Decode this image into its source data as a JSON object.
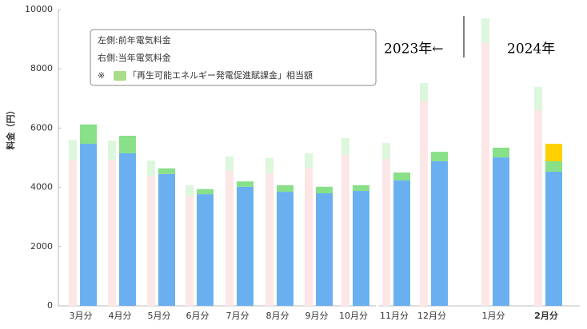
{
  "chart_data": {
    "type": "grouped-stacked-bar",
    "y_label": "料金（円）",
    "categories": [
      "3月分",
      "4月分",
      "5月分",
      "6月分",
      "7月分",
      "8月分",
      "9月分",
      "10月分",
      "11月分",
      "12月分",
      "1月分",
      "2月分"
    ],
    "bold_category_index": 11,
    "ylim": [
      0,
      10000
    ],
    "yticks": [
      0,
      2000,
      4000,
      6000,
      8000,
      10000
    ],
    "series": [
      {
        "stack": "prev",
        "color": "#fde6e6",
        "values": [
          4930,
          4930,
          4390,
          3690,
          4560,
          4470,
          4660,
          5090,
          4960,
          6900,
          8870,
          6600
        ]
      },
      {
        "stack": "prev",
        "color": "#dcf7dc",
        "values": [
          670,
          650,
          510,
          380,
          480,
          520,
          490,
          570,
          540,
          620,
          830,
          790
        ]
      },
      {
        "stack": "cur",
        "color": "#6ab0f0",
        "values": [
          5470,
          5150,
          4450,
          3770,
          4020,
          3850,
          3800,
          3880,
          4230,
          4880,
          5010,
          4530
        ]
      },
      {
        "stack": "cur",
        "color": "#88e088",
        "values": [
          650,
          590,
          190,
          170,
          180,
          220,
          220,
          190,
          270,
          320,
          330,
          350
        ]
      },
      {
        "stack": "cur",
        "color": "#ffd000",
        "values": [
          null,
          null,
          null,
          null,
          null,
          null,
          null,
          null,
          null,
          null,
          null,
          590
        ]
      }
    ],
    "legend": {
      "lines": [
        "左側:前年電気料金",
        "右側:当年電気料金",
        "※",
        "「再生可能エネルギー発電促進賦課金」相当額"
      ],
      "swatch_color": "#a8dc88"
    },
    "annotations": [
      "2023年←",
      "2024年"
    ]
  }
}
